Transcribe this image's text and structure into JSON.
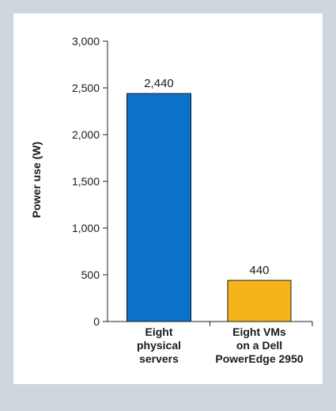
{
  "chart_data": {
    "type": "bar",
    "categories": [
      [
        "Eight",
        "physical",
        "servers"
      ],
      [
        "Eight VMs",
        "on a Dell",
        "PowerEdge 2950"
      ]
    ],
    "values": [
      2440,
      440
    ],
    "data_labels": [
      "2,440",
      "440"
    ],
    "colors": [
      "#0a72c8",
      "#f6b41a"
    ],
    "ylabel": "Power use (W)",
    "ylim": [
      0,
      3000
    ],
    "yticks": [
      0,
      500,
      1000,
      1500,
      2000,
      2500,
      3000
    ],
    "ytick_labels": [
      "0",
      "500",
      "1,000",
      "1,500",
      "2,000",
      "2,500",
      "3,000"
    ],
    "grid": false,
    "legend": "none"
  }
}
